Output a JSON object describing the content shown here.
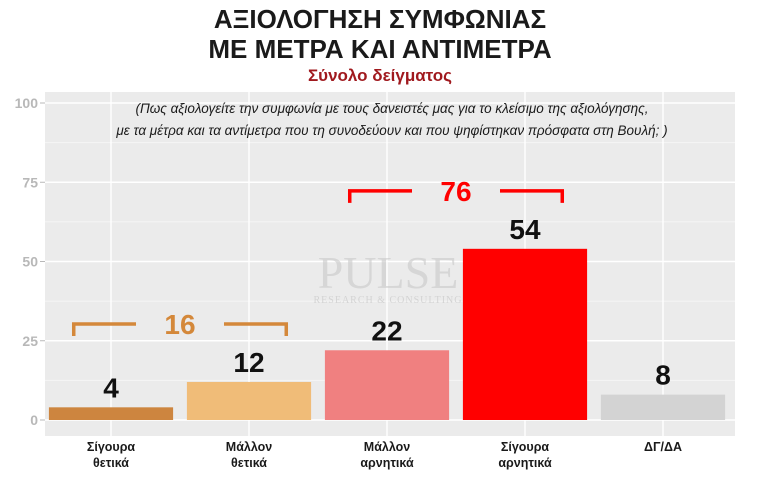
{
  "header": {
    "title_line1": "ΑΞΙΟΛΟΓΗΣΗ ΣΥΜΦΩΝΙΑΣ",
    "title_line2": "ΜΕ ΜΕΤΡΑ ΚΑΙ ΑΝΤΙΜΕΤΡΑ",
    "subtitle": "Σύνολο δείγματος"
  },
  "question_line1": "(Πως αξιολογείτε την συμφωνία με τους δανειστές μας για το κλείσιμο της αξιολόγησης,",
  "question_line2": "με τα μέτρα και τα αντίμετρα που τη συνοδεύουν και που ψηφίστηκαν πρόσφατα στη Βουλή; )",
  "watermark": {
    "main": "PULSE",
    "sub": "RESEARCH & CONSULTING"
  },
  "chart_data": {
    "type": "bar",
    "categories": [
      [
        "Σίγουρα",
        "θετικά"
      ],
      [
        "Μάλλον",
        "θετικά"
      ],
      [
        "Μάλλον",
        "αρνητικά"
      ],
      [
        "Σίγουρα",
        "αρνητικά"
      ],
      [
        "ΔΓ/ΔΑ"
      ]
    ],
    "values": [
      4,
      12,
      22,
      54,
      8
    ],
    "colors": [
      "#cd853f",
      "#f0bc78",
      "#f08080",
      "#ff0000",
      "#d3d3d3"
    ],
    "ylim": [
      0,
      100
    ],
    "yticks": [
      0,
      25,
      50,
      75,
      100
    ],
    "grid": true,
    "groups": [
      {
        "label": "16",
        "from": 0,
        "to": 1,
        "color": "#d4883a"
      },
      {
        "label": "76",
        "from": 2,
        "to": 3,
        "color": "#ff0000"
      }
    ]
  }
}
